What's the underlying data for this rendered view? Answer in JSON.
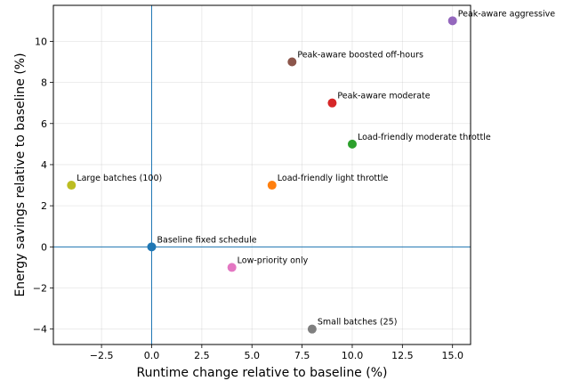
{
  "chart_data": {
    "type": "scatter",
    "title": "",
    "xlabel": "Runtime change relative to baseline (%)",
    "ylabel": "Energy savings relative to baseline (%)",
    "xlim": [
      -4.9,
      15.9
    ],
    "ylim": [
      -4.75,
      11.75
    ],
    "xticks": [
      -2.5,
      0.0,
      2.5,
      5.0,
      7.5,
      10.0,
      12.5,
      15.0
    ],
    "xtick_labels": [
      "−2.5",
      "0.0",
      "2.5",
      "5.0",
      "7.5",
      "10.0",
      "12.5",
      "15.0"
    ],
    "yticks": [
      -4,
      -2,
      0,
      2,
      4,
      6,
      8,
      10
    ],
    "ytick_labels": [
      "−4",
      "−2",
      "0",
      "2",
      "4",
      "6",
      "8",
      "10"
    ],
    "grid": true,
    "reference_lines": {
      "x": 0,
      "y": 0,
      "color": "#1f77b4"
    },
    "points": [
      {
        "label": "Baseline fixed schedule",
        "x": 0,
        "y": 0,
        "color": "#1f77b4"
      },
      {
        "label": "Load-friendly light throttle",
        "x": 6,
        "y": 3,
        "color": "#ff7f0e"
      },
      {
        "label": "Load-friendly moderate throttle",
        "x": 10,
        "y": 5,
        "color": "#2ca02c"
      },
      {
        "label": "Peak-aware moderate",
        "x": 9,
        "y": 7,
        "color": "#d62728"
      },
      {
        "label": "Peak-aware aggressive",
        "x": 15,
        "y": 11,
        "color": "#9467bd"
      },
      {
        "label": "Peak-aware boosted off-hours",
        "x": 7,
        "y": 9,
        "color": "#8c564b"
      },
      {
        "label": "Low-priority only",
        "x": 4,
        "y": -1,
        "color": "#e377c2"
      },
      {
        "label": "Small batches (25)",
        "x": 8,
        "y": -4,
        "color": "#7f7f7f"
      },
      {
        "label": "Large batches (100)",
        "x": -4,
        "y": 3,
        "color": "#bcbd22"
      }
    ]
  }
}
